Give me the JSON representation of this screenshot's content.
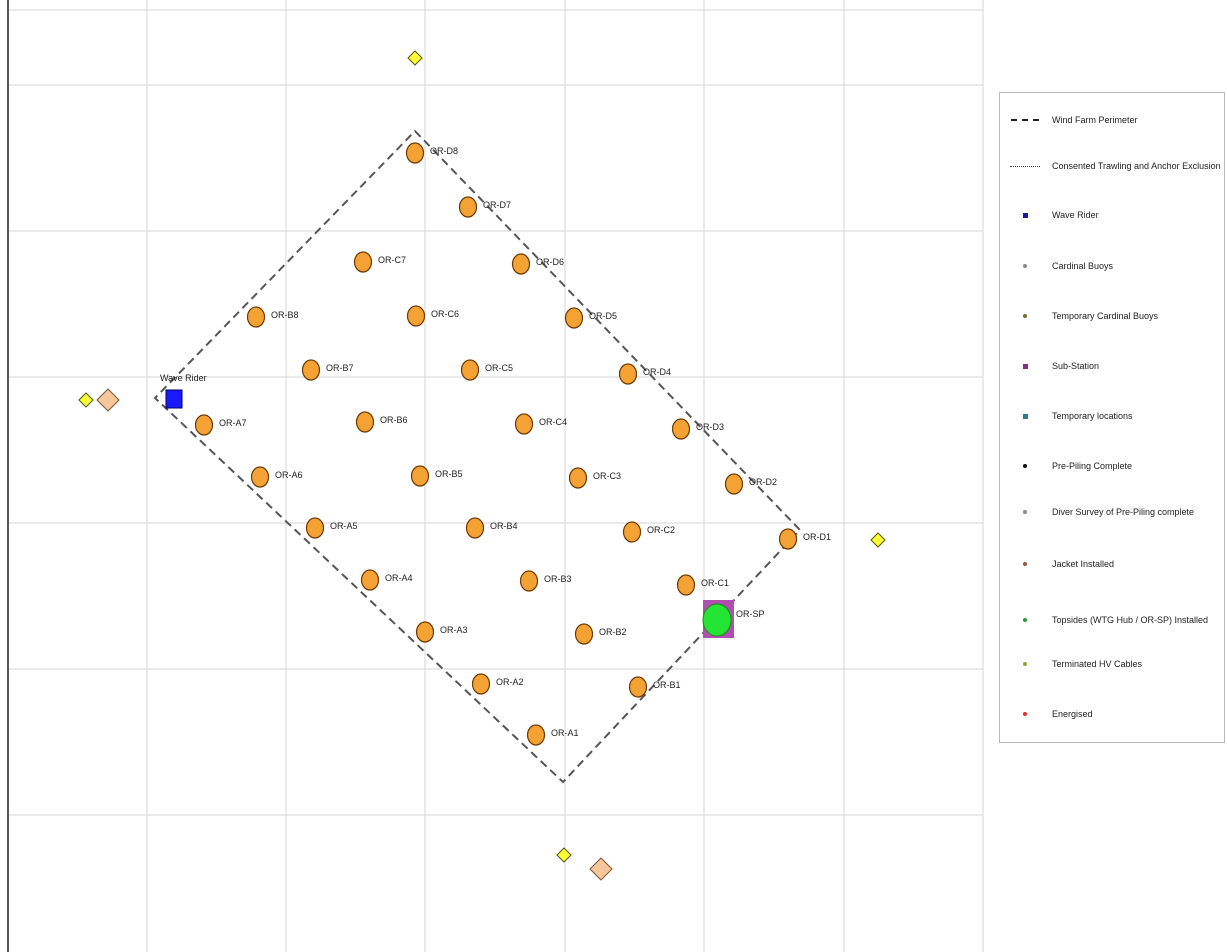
{
  "map": {
    "perimeter_label": "Wind Farm Perimeter",
    "turbines": [
      {
        "id": "OR-D8",
        "label": "OR-D8",
        "status": "Jacket Installed"
      },
      {
        "id": "OR-D7",
        "label": "OR-D7",
        "status": "Jacket Installed"
      },
      {
        "id": "OR-C7",
        "label": "OR-C7",
        "status": "Jacket Installed"
      },
      {
        "id": "OR-D6",
        "label": "OR-D6",
        "status": "Jacket Installed"
      },
      {
        "id": "OR-B8",
        "label": "OR-B8",
        "status": "Jacket Installed"
      },
      {
        "id": "OR-C6",
        "label": "OR-C6",
        "status": "Jacket Installed"
      },
      {
        "id": "OR-D5",
        "label": "OR-D5",
        "status": "Jacket Installed"
      },
      {
        "id": "OR-B7",
        "label": "OR-B7",
        "status": "Jacket Installed"
      },
      {
        "id": "OR-C5",
        "label": "OR-C5",
        "status": "Jacket Installed"
      },
      {
        "id": "OR-D4",
        "label": "OR-D4",
        "status": "Jacket Installed"
      },
      {
        "id": "OR-A7",
        "label": "OR-A7",
        "status": "Jacket Installed"
      },
      {
        "id": "OR-B6",
        "label": "OR-B6",
        "status": "Jacket Installed"
      },
      {
        "id": "OR-C4",
        "label": "OR-C4",
        "status": "Jacket Installed"
      },
      {
        "id": "OR-D3",
        "label": "OR-D3",
        "status": "Jacket Installed"
      },
      {
        "id": "OR-A6",
        "label": "OR-A6",
        "status": "Jacket Installed"
      },
      {
        "id": "OR-B5",
        "label": "OR-B5",
        "status": "Jacket Installed"
      },
      {
        "id": "OR-C3",
        "label": "OR-C3",
        "status": "Jacket Installed"
      },
      {
        "id": "OR-D2",
        "label": "OR-D2",
        "status": "Jacket Installed"
      },
      {
        "id": "OR-A5",
        "label": "OR-A5",
        "status": "Jacket Installed"
      },
      {
        "id": "OR-B4",
        "label": "OR-B4",
        "status": "Jacket Installed"
      },
      {
        "id": "OR-C2",
        "label": "OR-C2",
        "status": "Jacket Installed"
      },
      {
        "id": "OR-D1",
        "label": "OR-D1",
        "status": "Jacket Installed"
      },
      {
        "id": "OR-A4",
        "label": "OR-A4",
        "status": "Jacket Installed"
      },
      {
        "id": "OR-B3",
        "label": "OR-B3",
        "status": "Jacket Installed"
      },
      {
        "id": "OR-C1",
        "label": "OR-C1",
        "status": "Jacket Installed"
      },
      {
        "id": "OR-A3",
        "label": "OR-A3",
        "status": "Jacket Installed"
      },
      {
        "id": "OR-B2",
        "label": "OR-B2",
        "status": "Jacket Installed"
      },
      {
        "id": "OR-A2",
        "label": "OR-A2",
        "status": "Jacket Installed"
      },
      {
        "id": "OR-B1",
        "label": "OR-B1",
        "status": "Jacket Installed"
      },
      {
        "id": "OR-A1",
        "label": "OR-A1",
        "status": "Jacket Installed"
      }
    ],
    "substation": {
      "label": "OR-SP",
      "status": "Topsides (WTG Hub / OR-SP) Installed"
    },
    "wave_rider": {
      "label": "Wave Rider"
    },
    "colors": {
      "turbine_fill": "#f4a234",
      "turbine_stroke": "#6b3a00",
      "cardinal_buoy_fill": "#ffff33",
      "temp_buoy_fill": "#f5c79a",
      "substation_square": "#b04fb0",
      "substation_circle": "#22e633",
      "wave_rider_fill": "#1a1aff",
      "grid": "#d6d6d6",
      "perimeter": "#555555"
    }
  },
  "legend": {
    "items": [
      {
        "label": "Wind Farm Perimeter",
        "symbol": "dashed-line",
        "color": "#222222"
      },
      {
        "label": "Consented Trawling and Anchor Exclusion",
        "symbol": "dotted-line",
        "color": "#444444"
      },
      {
        "label": "Wave Rider",
        "symbol": "square",
        "color": "#1a1aaa"
      },
      {
        "label": "Cardinal Buoys",
        "symbol": "dot",
        "color": "#888888"
      },
      {
        "label": "Temporary Cardinal Buoys",
        "symbol": "dot",
        "color": "#7a6a2a"
      },
      {
        "label": "Sub-Station",
        "symbol": "square",
        "color": "#8a2a8a"
      },
      {
        "label": "Temporary locations",
        "symbol": "square",
        "color": "#2a7a9a"
      },
      {
        "label": "Pre-Piling Complete",
        "symbol": "dot",
        "color": "#111111"
      },
      {
        "label": "Diver Survey of Pre-Piling complete",
        "symbol": "dot",
        "color": "#888888"
      },
      {
        "label": "Jacket Installed",
        "symbol": "dot",
        "color": "#9a5a3a"
      },
      {
        "label": "Topsides (WTG Hub / OR-SP) Installed",
        "symbol": "dot",
        "color": "#2a9a3a"
      },
      {
        "label": "Terminated HV Cables",
        "symbol": "dot",
        "color": "#8aa83a"
      },
      {
        "label": "Energised",
        "symbol": "dot",
        "color": "#e03030"
      }
    ]
  }
}
